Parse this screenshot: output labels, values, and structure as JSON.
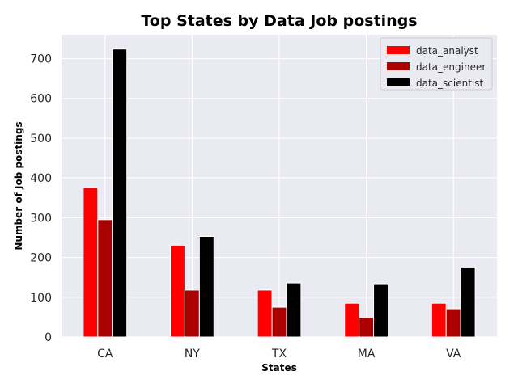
{
  "chart_data": {
    "type": "bar",
    "title": "Top States by Data Job postings",
    "xlabel": "States",
    "ylabel": "Number of Job postings",
    "categories": [
      "CA",
      "NY",
      "TX",
      "MA",
      "VA"
    ],
    "series": [
      {
        "name": "data_analyst",
        "values": [
          376,
          231,
          118,
          85,
          85
        ],
        "color": "#ff0000"
      },
      {
        "name": "data_engineer",
        "values": [
          295,
          118,
          75,
          50,
          71
        ],
        "color": "#aa0000"
      },
      {
        "name": "data_scientist",
        "values": [
          724,
          253,
          136,
          134,
          176
        ],
        "color": "#000000"
      }
    ],
    "ylim": [
      0,
      760
    ],
    "yticks": [
      0,
      100,
      200,
      300,
      400,
      500,
      600,
      700
    ],
    "grid": true,
    "legend_position": "top-right",
    "background_color": "#eaeaf2"
  }
}
